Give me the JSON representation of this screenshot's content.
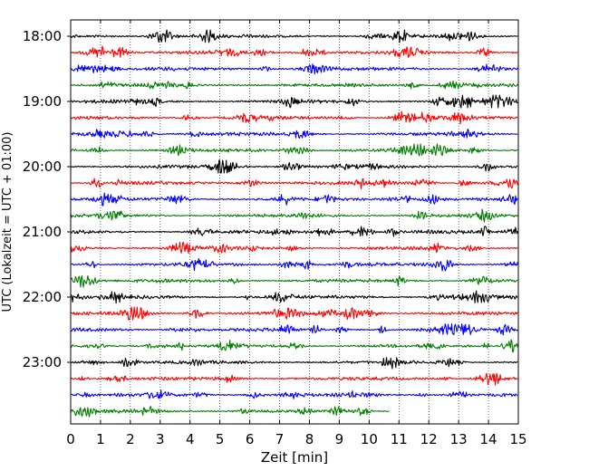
{
  "chart_data": {
    "type": "line",
    "title": "",
    "xlabel": "Zeit  [min]",
    "ylabel": "UTC (Lokalzeit = UTC + 01:00)",
    "xlim": [
      0,
      15
    ],
    "x_ticks": [
      0,
      1,
      2,
      3,
      4,
      5,
      6,
      7,
      8,
      9,
      10,
      11,
      12,
      13,
      14,
      15
    ],
    "y_ticks": [
      "18:00",
      "19:00",
      "20:00",
      "21:00",
      "22:00",
      "23:00"
    ],
    "grid": "vertical dotted",
    "line_colors": [
      "#000000",
      "#ff0000",
      "#0000ff",
      "#007f00"
    ],
    "traces": [
      {
        "start": "18:00",
        "color": "#000000",
        "x_end": 15
      },
      {
        "start": "18:15",
        "color": "#ff0000",
        "x_end": 15
      },
      {
        "start": "18:30",
        "color": "#0000ff",
        "x_end": 15
      },
      {
        "start": "18:45",
        "color": "#007f00",
        "x_end": 15
      },
      {
        "start": "19:00",
        "color": "#000000",
        "x_end": 15
      },
      {
        "start": "19:15",
        "color": "#ff0000",
        "x_end": 15
      },
      {
        "start": "19:30",
        "color": "#0000ff",
        "x_end": 15
      },
      {
        "start": "19:45",
        "color": "#007f00",
        "x_end": 15
      },
      {
        "start": "20:00",
        "color": "#000000",
        "x_end": 15
      },
      {
        "start": "20:15",
        "color": "#ff0000",
        "x_end": 15
      },
      {
        "start": "20:30",
        "color": "#0000ff",
        "x_end": 15
      },
      {
        "start": "20:45",
        "color": "#007f00",
        "x_end": 15
      },
      {
        "start": "21:00",
        "color": "#000000",
        "x_end": 15
      },
      {
        "start": "21:15",
        "color": "#ff0000",
        "x_end": 15
      },
      {
        "start": "21:30",
        "color": "#0000ff",
        "x_end": 15
      },
      {
        "start": "21:45",
        "color": "#007f00",
        "x_end": 15
      },
      {
        "start": "22:00",
        "color": "#000000",
        "x_end": 15
      },
      {
        "start": "22:15",
        "color": "#ff0000",
        "x_end": 15
      },
      {
        "start": "22:30",
        "color": "#0000ff",
        "x_end": 15
      },
      {
        "start": "22:45",
        "color": "#007f00",
        "x_end": 15
      },
      {
        "start": "23:00",
        "color": "#000000",
        "x_end": 15
      },
      {
        "start": "23:15",
        "color": "#ff0000",
        "x_end": 15
      },
      {
        "start": "23:30",
        "color": "#0000ff",
        "x_end": 15
      },
      {
        "start": "23:45",
        "color": "#007f00",
        "x_end": 10.7
      }
    ]
  }
}
